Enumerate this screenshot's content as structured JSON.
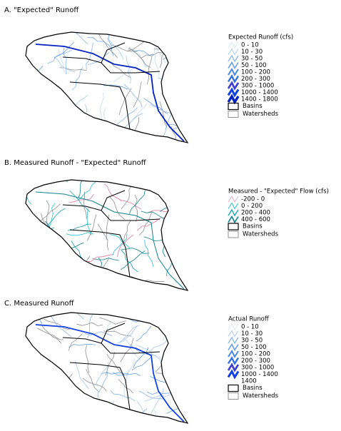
{
  "panels": [
    {
      "title": "A.   \"Expected\" Runoff",
      "legend_title": "Expected Runoff (cfs)",
      "items": [
        {
          "label": "0 - 10",
          "color": "#c8d8f0"
        },
        {
          "label": "10 - 30",
          "color": "#a8c8f0"
        },
        {
          "label": "30 - 50",
          "color": "#88b8f0"
        },
        {
          "label": "50 - 100",
          "color": "#68a0e8"
        },
        {
          "label": "100 - 200",
          "color": "#4888e0"
        },
        {
          "label": "200 - 300",
          "color": "#3070e0"
        },
        {
          "label": "300 - 1000",
          "color": "#4040d0"
        },
        {
          "label": "1000 - 1400",
          "color": "#1040e0"
        },
        {
          "label": "1400 - 1800",
          "color": "#0020c0"
        }
      ],
      "basins": "Basins",
      "watersheds": "Watersheds"
    },
    {
      "title": "B.   Measured Runoff - \"Expected\" Runoff",
      "legend_title": "Measured - \"Expected\" Flow (cfs)",
      "items": [
        {
          "label": "-200 - 0",
          "color": "#e07898"
        },
        {
          "label": "0 - 200",
          "color": "#20c0d0"
        },
        {
          "label": "200 - 400",
          "color": "#10a0b0"
        },
        {
          "label": "400 - 600",
          "color": "#108090"
        }
      ],
      "basins": "Basins",
      "watersheds": "Watersheds"
    },
    {
      "title": "C.   Measured Runoff",
      "legend_title": "Actual Runoff",
      "items": [
        {
          "label": "0 - 10",
          "color": "#c8d8f0"
        },
        {
          "label": "10 - 30",
          "color": "#a8c8f0"
        },
        {
          "label": "30 - 50",
          "color": "#88b8f0"
        },
        {
          "label": "50 - 100",
          "color": "#68a0e8"
        },
        {
          "label": "100 - 200",
          "color": "#4888e0"
        },
        {
          "label": "200 - 300",
          "color": "#3070e0"
        },
        {
          "label": "300 - 1000",
          "color": "#4040d0"
        },
        {
          "label": "1000 - 1400",
          "color": "#1040e0"
        },
        {
          "label": "1400"
        }
      ],
      "basins": "Basins",
      "watersheds": "Watersheds"
    }
  ]
}
